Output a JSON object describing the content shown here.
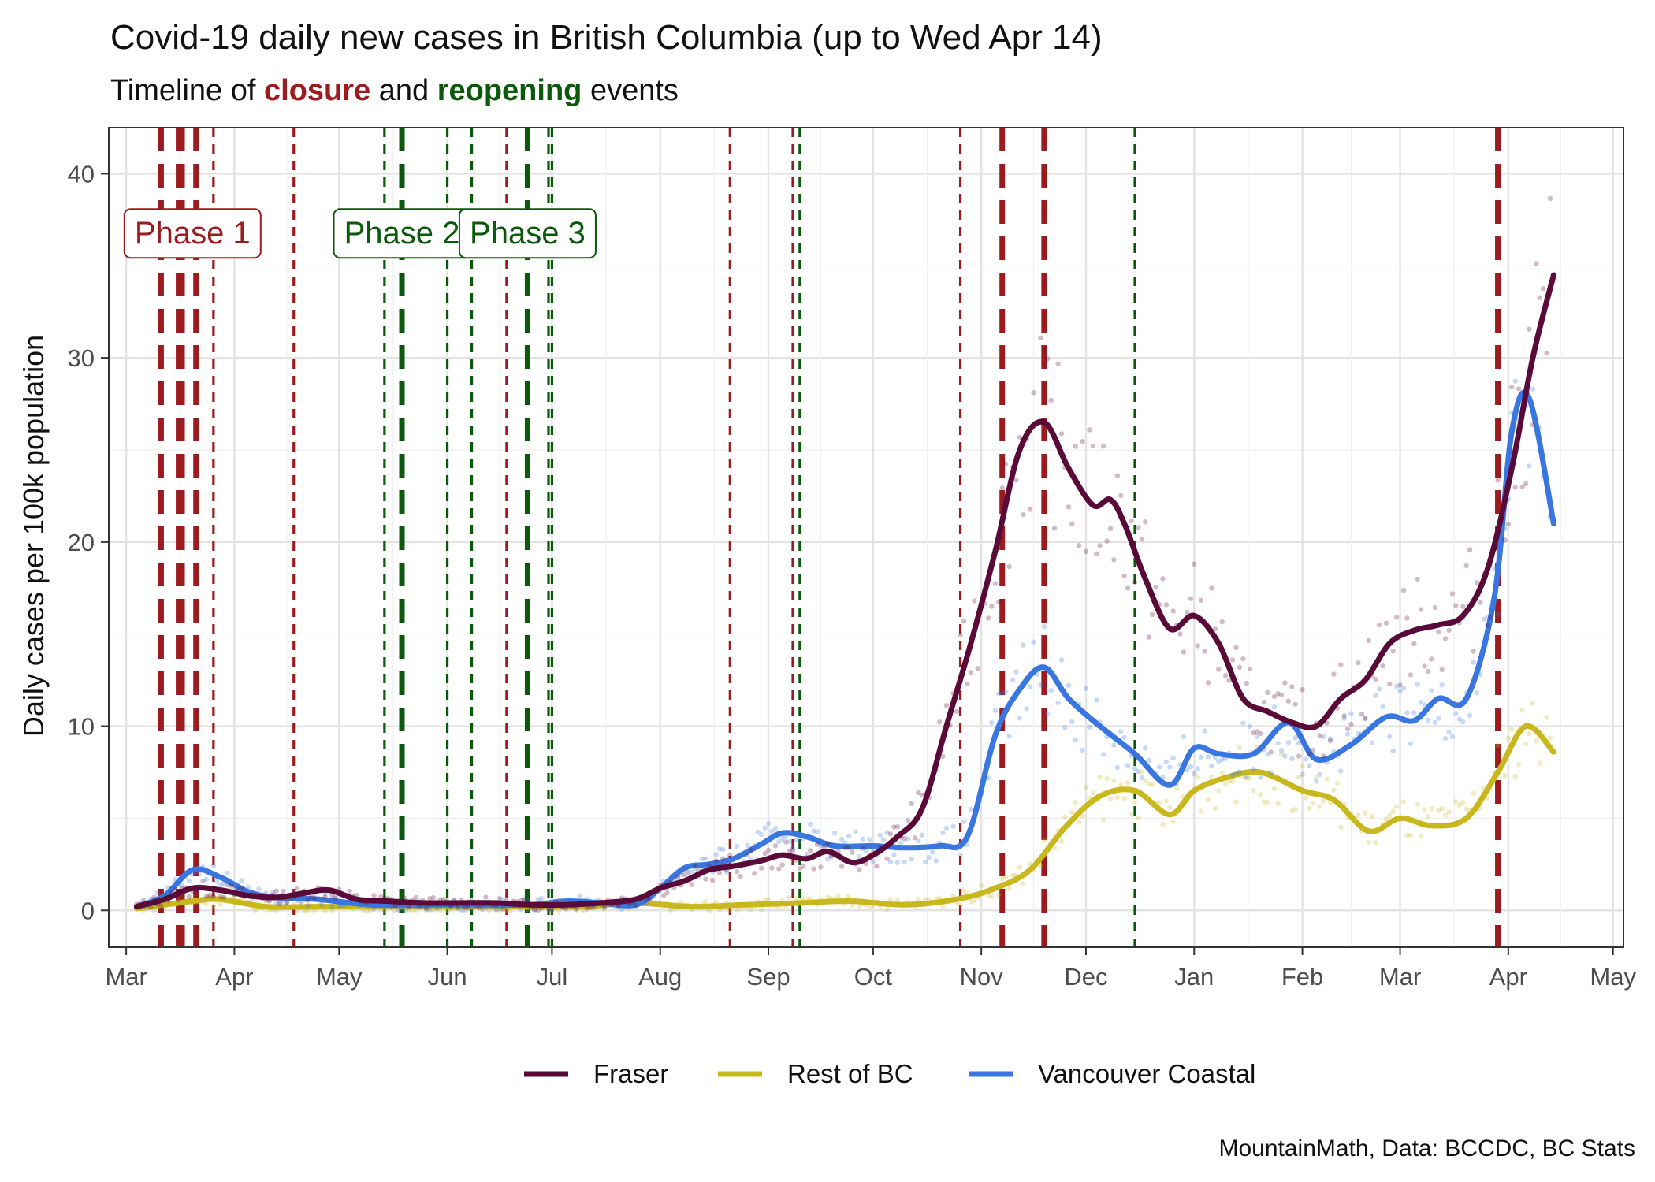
{
  "chart_data": {
    "type": "line",
    "title": "Covid-19 daily new cases in British Columbia (up to Wed Apr 14)",
    "subtitle": {
      "prefix": "Timeline of ",
      "closure": "closure",
      "middle": " and ",
      "reopening": "reopening",
      "suffix": " events"
    },
    "ylabel": "Daily cases per 100k population",
    "xlabel": "",
    "caption": "MountainMath, Data: BCCDC, BC Stats",
    "ylim": [
      -2,
      42.5
    ],
    "xlim": [
      "2020-02-25",
      "2021-05-04"
    ],
    "y_ticks": [
      0,
      10,
      20,
      30,
      40
    ],
    "x_ticks": [
      {
        "date": "2020-03-01",
        "label": "Mar"
      },
      {
        "date": "2020-04-01",
        "label": "Apr"
      },
      {
        "date": "2020-05-01",
        "label": "May"
      },
      {
        "date": "2020-06-01",
        "label": "Jun"
      },
      {
        "date": "2020-07-01",
        "label": "Jul"
      },
      {
        "date": "2020-08-01",
        "label": "Aug"
      },
      {
        "date": "2020-09-01",
        "label": "Sep"
      },
      {
        "date": "2020-10-01",
        "label": "Oct"
      },
      {
        "date": "2020-11-01",
        "label": "Nov"
      },
      {
        "date": "2020-12-01",
        "label": "Dec"
      },
      {
        "date": "2021-01-01",
        "label": "Jan"
      },
      {
        "date": "2021-02-01",
        "label": "Feb"
      },
      {
        "date": "2021-03-01",
        "label": "Mar"
      },
      {
        "date": "2021-04-01",
        "label": "Apr"
      },
      {
        "date": "2021-05-01",
        "label": "May"
      }
    ],
    "grid": true,
    "legend_position": "bottom",
    "colors": {
      "closure": "#9b1b1f",
      "reopening": "#0b5a0b"
    },
    "annotations": [
      {
        "label": "Phase 1",
        "date": "2020-03-20",
        "y": 36.8,
        "color": "#9b1b1f"
      },
      {
        "label": "Phase 2",
        "date": "2020-05-19",
        "y": 36.8,
        "color": "#0b5a0b"
      },
      {
        "label": "Phase 3",
        "date": "2020-06-24",
        "y": 36.8,
        "color": "#0b5a0b"
      }
    ],
    "events": [
      {
        "date": "2020-03-11",
        "type": "closure",
        "major": true
      },
      {
        "date": "2020-03-16",
        "type": "closure",
        "major": true
      },
      {
        "date": "2020-03-17",
        "type": "closure",
        "major": true
      },
      {
        "date": "2020-03-21",
        "type": "closure",
        "major": true
      },
      {
        "date": "2020-03-26",
        "type": "closure",
        "major": false
      },
      {
        "date": "2020-04-18",
        "type": "closure",
        "major": false
      },
      {
        "date": "2020-05-14",
        "type": "reopening",
        "major": false
      },
      {
        "date": "2020-05-19",
        "type": "reopening",
        "major": true
      },
      {
        "date": "2020-06-01",
        "type": "reopening",
        "major": false
      },
      {
        "date": "2020-06-08",
        "type": "reopening",
        "major": false
      },
      {
        "date": "2020-06-18",
        "type": "closure",
        "major": false
      },
      {
        "date": "2020-06-24",
        "type": "reopening",
        "major": true
      },
      {
        "date": "2020-06-30",
        "type": "reopening",
        "major": false
      },
      {
        "date": "2020-07-01",
        "type": "reopening",
        "major": false
      },
      {
        "date": "2020-08-21",
        "type": "closure",
        "major": false
      },
      {
        "date": "2020-09-08",
        "type": "closure",
        "major": false
      },
      {
        "date": "2020-09-10",
        "type": "reopening",
        "major": false
      },
      {
        "date": "2020-10-26",
        "type": "closure",
        "major": false
      },
      {
        "date": "2020-11-07",
        "type": "closure",
        "major": true
      },
      {
        "date": "2020-11-19",
        "type": "closure",
        "major": true
      },
      {
        "date": "2020-12-15",
        "type": "reopening",
        "major": false
      },
      {
        "date": "2021-03-29",
        "type": "closure",
        "major": true
      }
    ],
    "series": [
      {
        "name": "Fraser",
        "color": "#5a0a38",
        "x": [
          "2020-03-04",
          "2020-03-12",
          "2020-03-20",
          "2020-03-28",
          "2020-04-05",
          "2020-04-13",
          "2020-04-20",
          "2020-04-28",
          "2020-05-06",
          "2020-05-15",
          "2020-05-25",
          "2020-06-05",
          "2020-06-15",
          "2020-06-25",
          "2020-07-05",
          "2020-07-15",
          "2020-07-25",
          "2020-08-01",
          "2020-08-08",
          "2020-08-15",
          "2020-08-22",
          "2020-08-30",
          "2020-09-05",
          "2020-09-12",
          "2020-09-18",
          "2020-09-25",
          "2020-10-01",
          "2020-10-08",
          "2020-10-15",
          "2020-10-22",
          "2020-10-29",
          "2020-11-05",
          "2020-11-12",
          "2020-11-19",
          "2020-11-26",
          "2020-12-03",
          "2020-12-08",
          "2020-12-12",
          "2020-12-18",
          "2020-12-25",
          "2021-01-01",
          "2021-01-08",
          "2021-01-15",
          "2021-01-22",
          "2021-01-29",
          "2021-02-05",
          "2021-02-12",
          "2021-02-19",
          "2021-02-26",
          "2021-03-05",
          "2021-03-12",
          "2021-03-19",
          "2021-03-26",
          "2021-04-02",
          "2021-04-08",
          "2021-04-14"
        ],
        "y": [
          0.2,
          0.6,
          1.2,
          1.1,
          0.8,
          0.7,
          0.9,
          1.1,
          0.6,
          0.5,
          0.4,
          0.4,
          0.4,
          0.3,
          0.3,
          0.4,
          0.6,
          1.2,
          1.6,
          2.2,
          2.4,
          2.7,
          3.0,
          2.8,
          3.2,
          2.6,
          3.0,
          4.0,
          5.5,
          10.0,
          14.5,
          19.5,
          25.0,
          26.5,
          24.0,
          22.0,
          22.3,
          21.0,
          18.0,
          15.3,
          16.0,
          14.5,
          11.5,
          10.8,
          10.2,
          10.0,
          11.5,
          12.5,
          14.5,
          15.2,
          15.5,
          16.0,
          18.5,
          24.0,
          30.0,
          34.5
        ]
      },
      {
        "name": "Rest of BC",
        "color": "#c9b81d",
        "x": [
          "2020-03-04",
          "2020-03-12",
          "2020-03-20",
          "2020-03-28",
          "2020-04-10",
          "2020-04-25",
          "2020-05-10",
          "2020-05-25",
          "2020-06-10",
          "2020-06-25",
          "2020-07-10",
          "2020-07-25",
          "2020-08-10",
          "2020-08-25",
          "2020-09-10",
          "2020-09-25",
          "2020-10-10",
          "2020-10-25",
          "2020-11-05",
          "2020-11-15",
          "2020-11-25",
          "2020-12-05",
          "2020-12-15",
          "2020-12-25",
          "2021-01-01",
          "2021-01-10",
          "2021-01-20",
          "2021-02-01",
          "2021-02-10",
          "2021-02-20",
          "2021-03-01",
          "2021-03-10",
          "2021-03-20",
          "2021-03-29",
          "2021-04-06",
          "2021-04-14"
        ],
        "y": [
          0.1,
          0.3,
          0.5,
          0.6,
          0.2,
          0.2,
          0.2,
          0.2,
          0.2,
          0.2,
          0.2,
          0.4,
          0.2,
          0.3,
          0.4,
          0.5,
          0.3,
          0.6,
          1.2,
          2.2,
          4.5,
          6.2,
          6.5,
          5.2,
          6.5,
          7.2,
          7.5,
          6.5,
          6.0,
          4.3,
          5.0,
          4.6,
          5.0,
          7.5,
          10.0,
          8.6
        ]
      },
      {
        "name": "Vancouver Coastal",
        "color": "#3a76e0",
        "x": [
          "2020-03-04",
          "2020-03-12",
          "2020-03-20",
          "2020-03-28",
          "2020-04-05",
          "2020-04-13",
          "2020-04-25",
          "2020-05-10",
          "2020-05-25",
          "2020-06-10",
          "2020-06-25",
          "2020-07-05",
          "2020-07-15",
          "2020-07-25",
          "2020-08-01",
          "2020-08-08",
          "2020-08-15",
          "2020-08-22",
          "2020-08-30",
          "2020-09-05",
          "2020-09-12",
          "2020-09-20",
          "2020-10-01",
          "2020-10-10",
          "2020-10-20",
          "2020-10-28",
          "2020-11-05",
          "2020-11-12",
          "2020-11-19",
          "2020-11-26",
          "2020-12-05",
          "2020-12-15",
          "2020-12-25",
          "2021-01-01",
          "2021-01-08",
          "2021-01-18",
          "2021-01-28",
          "2021-02-05",
          "2021-02-15",
          "2021-02-25",
          "2021-03-05",
          "2021-03-12",
          "2021-03-20",
          "2021-03-28",
          "2021-04-02",
          "2021-04-07",
          "2021-04-14"
        ],
        "y": [
          0.2,
          0.8,
          2.2,
          1.8,
          1.0,
          0.7,
          0.6,
          0.3,
          0.3,
          0.3,
          0.3,
          0.5,
          0.4,
          0.3,
          1.2,
          2.3,
          2.5,
          2.8,
          3.6,
          4.2,
          4.0,
          3.5,
          3.5,
          3.4,
          3.5,
          4.0,
          9.5,
          12.0,
          13.2,
          11.5,
          10.0,
          8.5,
          6.8,
          8.8,
          8.5,
          8.5,
          10.2,
          8.2,
          9.0,
          10.5,
          10.3,
          11.5,
          11.5,
          17.0,
          26.0,
          27.8,
          21.0
        ]
      }
    ]
  }
}
